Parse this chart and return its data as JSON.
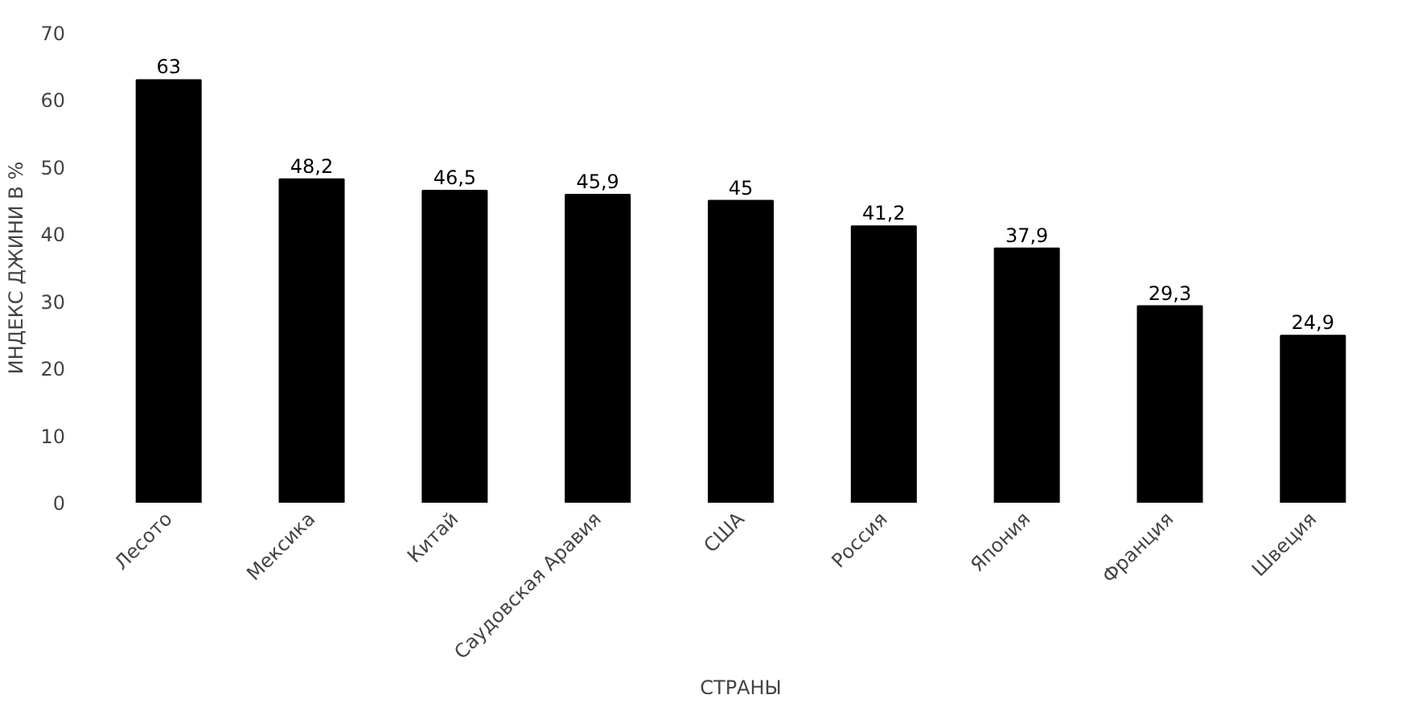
{
  "chart_data": {
    "type": "bar",
    "xlabel": "СТРАНЫ",
    "ylabel": "ИНДЕКС ДЖИНИ В %",
    "categories": [
      "Лесото",
      "Мексика",
      "Китай",
      "Саудовская Аравия",
      "США",
      "Россия",
      "Япония",
      "Франция",
      "Швеция"
    ],
    "values": [
      63,
      48.2,
      46.5,
      45.9,
      45,
      41.2,
      37.9,
      29.3,
      24.9
    ],
    "value_labels": [
      "63",
      "48,2",
      "46,5",
      "45,9",
      "45",
      "41,2",
      "37,9",
      "29,3",
      "24,9"
    ],
    "color": "#000000",
    "ylim": [
      0,
      70
    ],
    "yticks": [
      0,
      10,
      20,
      30,
      40,
      50,
      60,
      70
    ],
    "grid": false
  }
}
